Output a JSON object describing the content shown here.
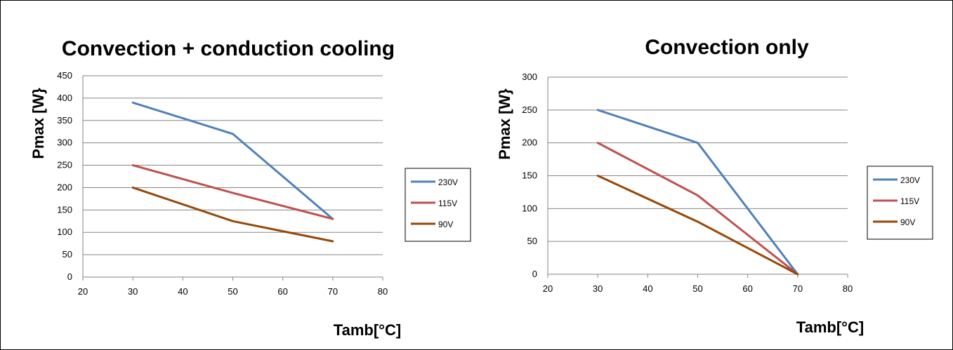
{
  "chart_data": [
    {
      "type": "line",
      "title": "Convection + conduction  cooling",
      "xlabel": "Tamb[°C]",
      "ylabel": "Pmax [W}",
      "xlim": [
        20,
        80
      ],
      "ylim": [
        0,
        450
      ],
      "xticks": [
        20,
        30,
        40,
        50,
        60,
        70,
        80
      ],
      "yticks": [
        0,
        50,
        100,
        150,
        200,
        250,
        300,
        350,
        400,
        450
      ],
      "grid": "horizontal",
      "legend_position": "right",
      "x": [
        30,
        50,
        70
      ],
      "series": [
        {
          "name": "230V",
          "color": "#4F81BD",
          "values": [
            390,
            320,
            130
          ]
        },
        {
          "name": "115V",
          "color": "#C0504D",
          "values": [
            250,
            188,
            130
          ]
        },
        {
          "name": "90V",
          "color": "#984807",
          "values": [
            200,
            125,
            80
          ]
        }
      ]
    },
    {
      "type": "line",
      "title": "Convection  only",
      "xlabel": "Tamb[°C]",
      "ylabel": "Pmax [W}",
      "xlim": [
        20,
        80
      ],
      "ylim": [
        0,
        300
      ],
      "xticks": [
        20,
        30,
        40,
        50,
        60,
        70,
        80
      ],
      "yticks": [
        0,
        50,
        100,
        150,
        200,
        250,
        300
      ],
      "grid": "horizontal",
      "legend_position": "right",
      "x": [
        30,
        50,
        70
      ],
      "series": [
        {
          "name": "230V",
          "color": "#4F81BD",
          "values": [
            250,
            200,
            0
          ]
        },
        {
          "name": "115V",
          "color": "#C0504D",
          "values": [
            200,
            120,
            0
          ]
        },
        {
          "name": "90V",
          "color": "#984807",
          "values": [
            150,
            80,
            0
          ]
        }
      ]
    }
  ]
}
